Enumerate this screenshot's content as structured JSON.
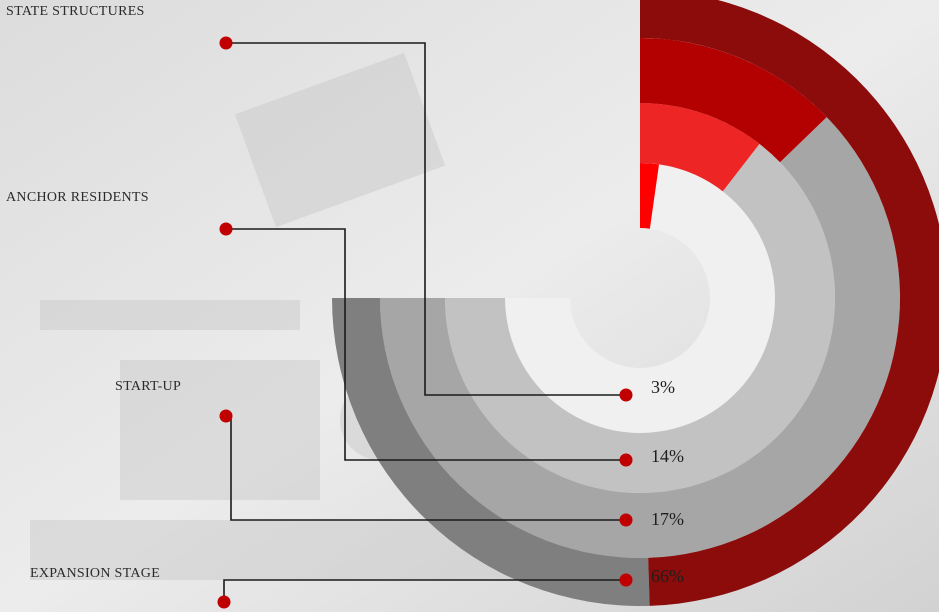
{
  "chart_data": {
    "type": "radial-bar",
    "categories": [
      "STATE STRUCTURES",
      "ANCHOR RESIDENTS",
      "START-UP",
      "EXPANSION STAGE"
    ],
    "values": [
      3,
      14,
      17,
      66
    ],
    "labels": [
      "3%",
      "14%",
      "17%",
      "66%"
    ],
    "unit": "%",
    "colors": {
      "filled": [
        "#ff0000",
        "#ee2525",
        "#b30000",
        "#8c0b0b"
      ],
      "remainder": [
        "#f0f0f0",
        "#c2c2c2",
        "#a6a6a6",
        "#7f7f7f"
      ],
      "connector": "#1a1a1a",
      "dot": "#c00000"
    }
  }
}
